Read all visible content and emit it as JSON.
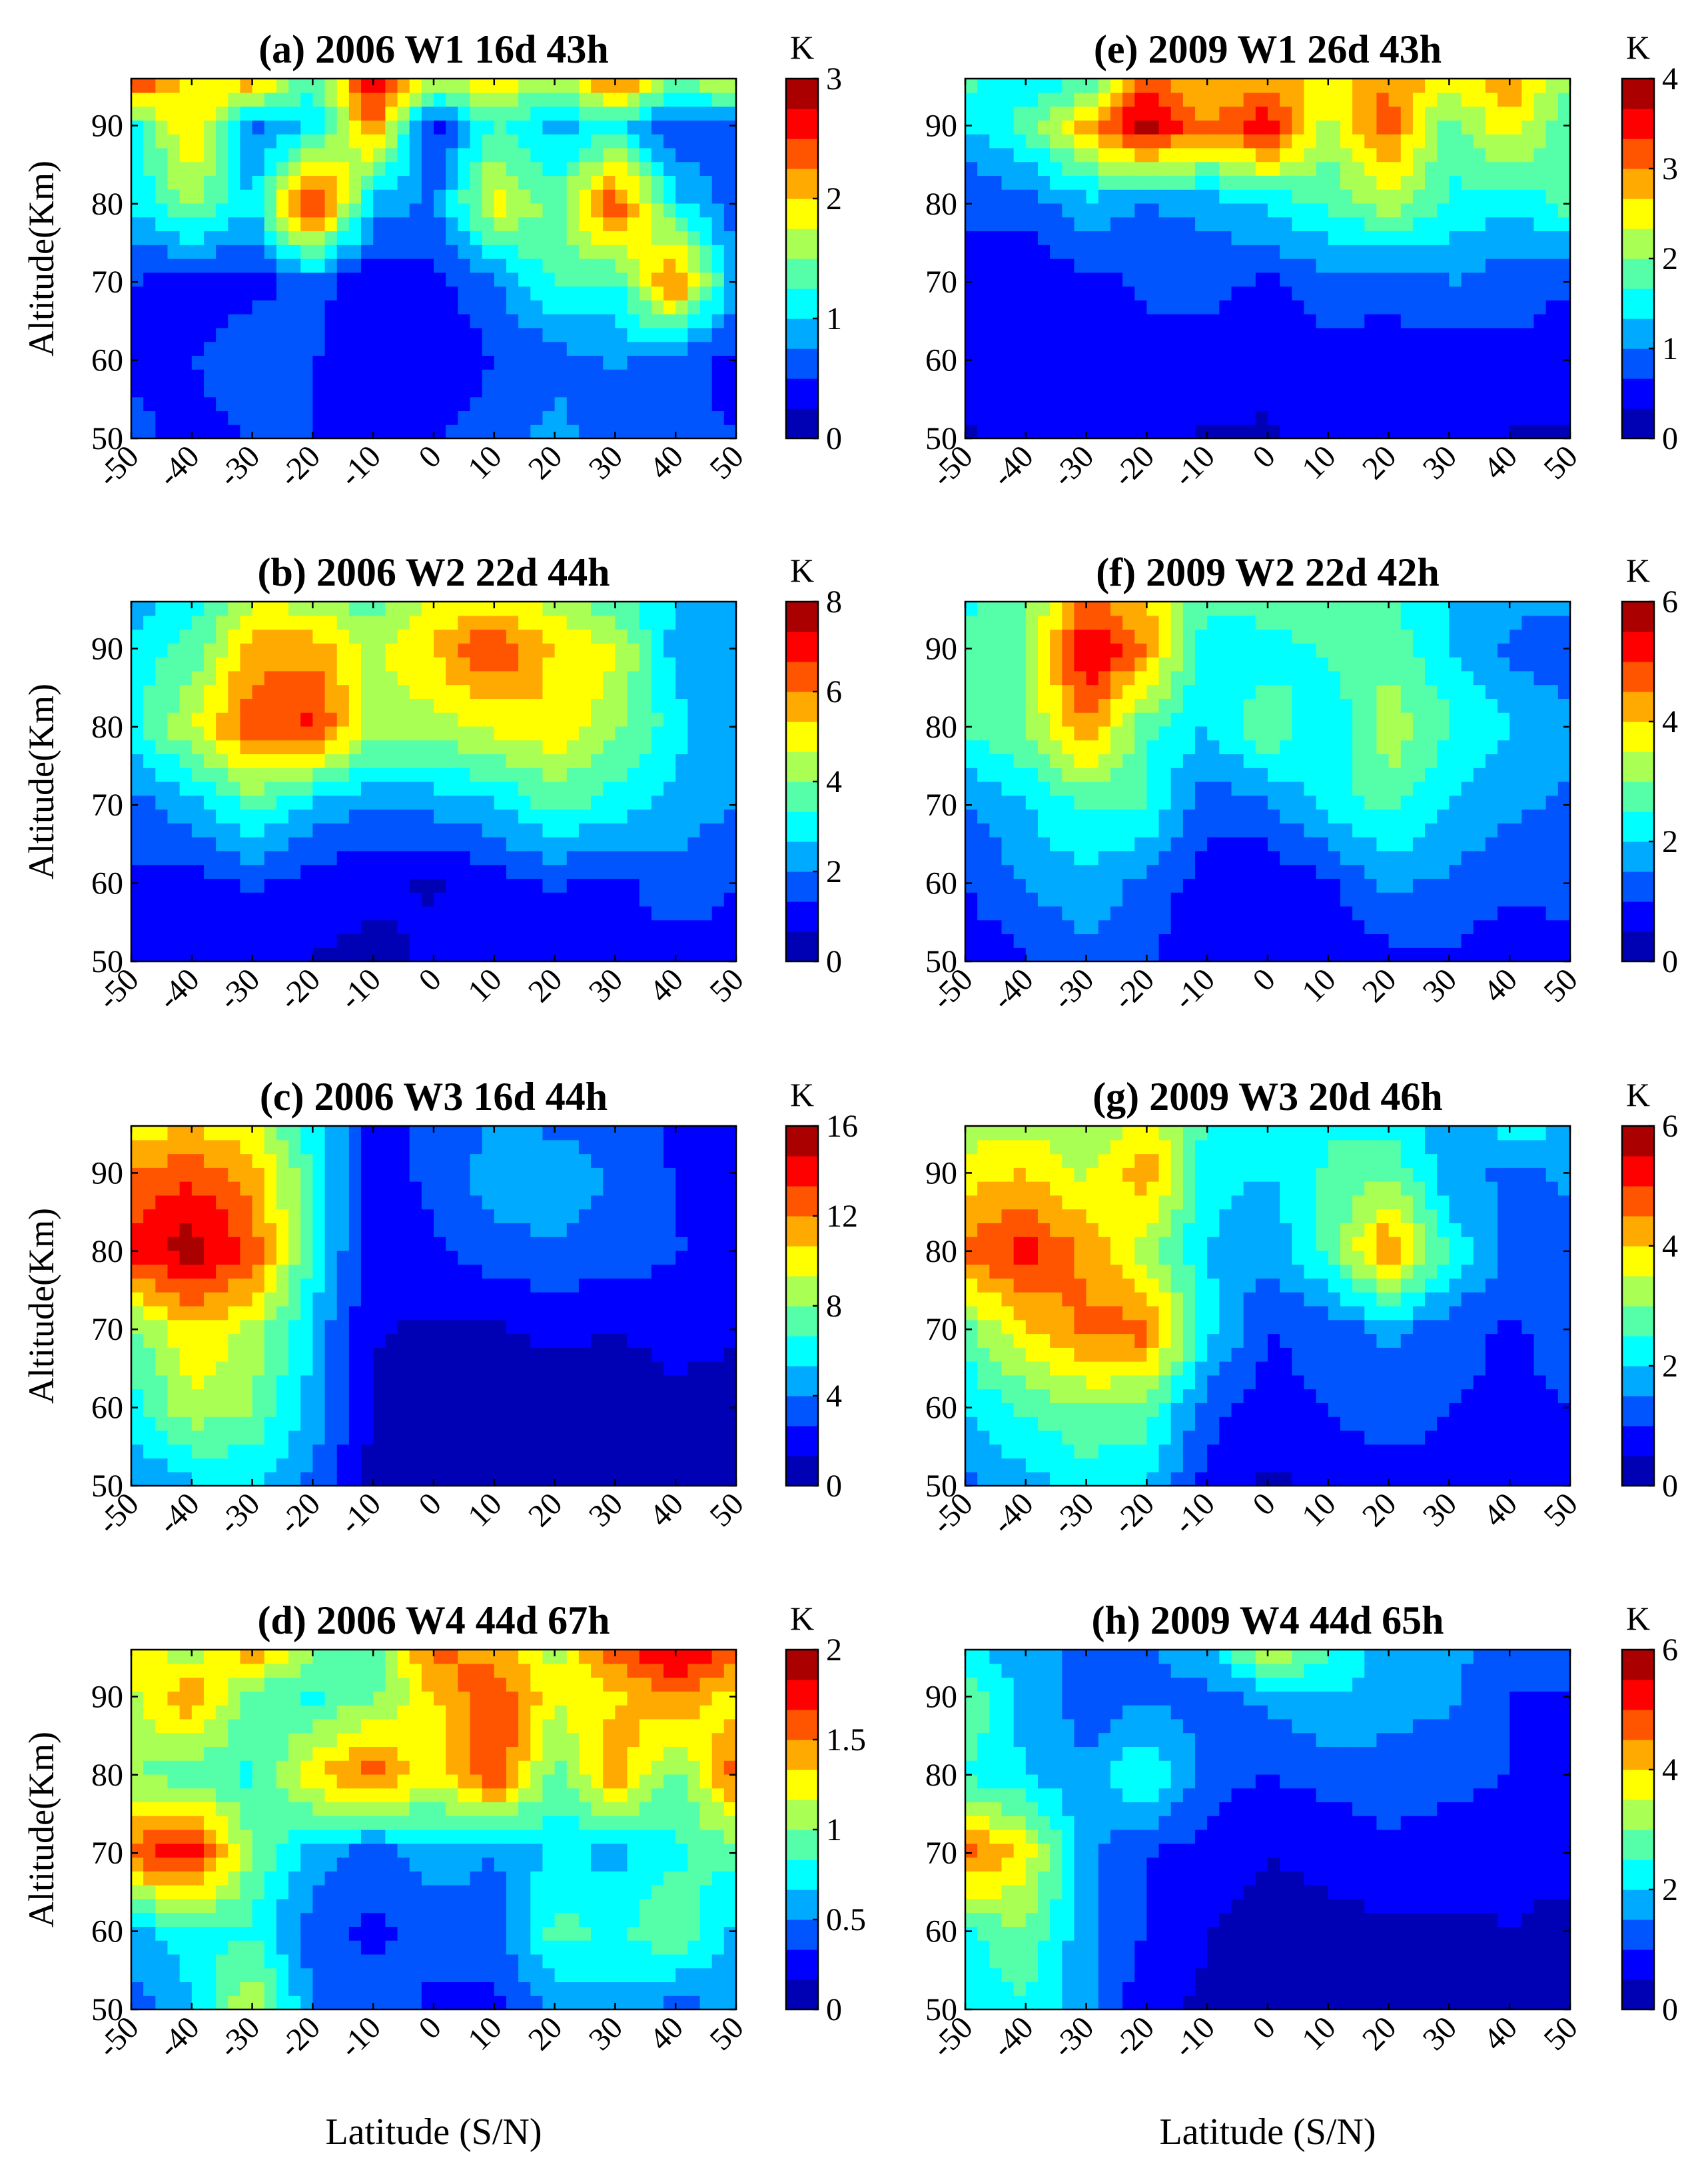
{
  "colormap": [
    "#00008f",
    "#0000ff",
    "#0080ff",
    "#00ffff",
    "#80ff80",
    "#ffff00",
    "#ff8000",
    "#ff0000",
    "#800000"
  ],
  "chart_data": [
    {
      "type": "heatmap",
      "panel": "a",
      "title": "(a) 2006 W1 16d 43h",
      "xlabel": "",
      "ylabel": "Altitude(Km)",
      "xlim": [
        -50,
        50
      ],
      "ylim": [
        50,
        96
      ],
      "xticks": [
        "-50",
        "-40",
        "-30",
        "-20",
        "-10",
        "0",
        "10",
        "20",
        "30",
        "40",
        "50"
      ],
      "yticks": [
        "50",
        "60",
        "70",
        "80",
        "90"
      ],
      "colorbar": {
        "unit": "K",
        "min": 0,
        "max": 3,
        "ticks": [
          "0",
          "1",
          "2",
          "3"
        ]
      },
      "lat": [
        -50,
        -40,
        -30,
        -20,
        -10,
        0,
        10,
        20,
        30,
        40,
        50
      ],
      "alt": [
        50,
        60,
        70,
        80,
        90,
        96
      ],
      "z": [
        [
          0.6,
          0.4,
          0.5,
          0.5,
          0.4,
          0.5,
          0.6,
          0.9,
          0.5,
          0.6,
          0.5
        ],
        [
          0.4,
          0.5,
          0.7,
          0.5,
          0.4,
          0.3,
          0.5,
          0.6,
          0.8,
          0.6,
          0.4
        ],
        [
          0.5,
          0.3,
          0.4,
          0.6,
          0.3,
          0.4,
          0.7,
          1.3,
          1.2,
          2.4,
          0.8
        ],
        [
          1.0,
          1.6,
          1.0,
          2.8,
          0.9,
          0.7,
          1.9,
          1.4,
          2.5,
          1.1,
          0.6
        ],
        [
          1.1,
          2.1,
          0.7,
          1.0,
          2.3,
          0.4,
          1.3,
          0.9,
          1.1,
          0.5,
          0.7
        ],
        [
          2.7,
          1.8,
          2.3,
          1.2,
          2.8,
          1.7,
          2.0,
          1.6,
          2.5,
          1.5,
          1.9
        ]
      ]
    },
    {
      "type": "heatmap",
      "panel": "b",
      "title": "(b) 2006 W2 22d 44h",
      "xlabel": "",
      "ylabel": "Altitude(Km)",
      "xlim": [
        -50,
        50
      ],
      "ylim": [
        50,
        96
      ],
      "xticks": [
        "-50",
        "-40",
        "-30",
        "-20",
        "-10",
        "0",
        "10",
        "20",
        "30",
        "40",
        "50"
      ],
      "yticks": [
        "50",
        "60",
        "70",
        "80",
        "90"
      ],
      "colorbar": {
        "unit": "K",
        "min": 0,
        "max": 8,
        "ticks": [
          "0",
          "2",
          "4",
          "6",
          "8"
        ]
      },
      "lat": [
        -50,
        -40,
        -30,
        -20,
        -10,
        0,
        10,
        20,
        30,
        40,
        50
      ],
      "alt": [
        50,
        60,
        70,
        80,
        90,
        96
      ],
      "z": [
        [
          1.0,
          0.8,
          1.0,
          0.6,
          0.5,
          0.8,
          1.0,
          1.0,
          0.9,
          1.0,
          1.0
        ],
        [
          1.2,
          1.0,
          1.4,
          1.0,
          0.8,
          0.6,
          1.0,
          1.4,
          1.1,
          1.8,
          1.3
        ],
        [
          1.6,
          2.4,
          3.6,
          2.4,
          2.0,
          2.2,
          2.6,
          3.6,
          3.0,
          2.4,
          2.0
        ],
        [
          3.2,
          4.6,
          6.5,
          6.8,
          4.4,
          4.4,
          4.8,
          5.2,
          4.2,
          3.0,
          2.0
        ],
        [
          2.8,
          3.6,
          5.6,
          5.8,
          4.5,
          5.4,
          6.8,
          5.2,
          4.8,
          2.4,
          2.0
        ],
        [
          2.4,
          2.9,
          4.6,
          4.4,
          3.6,
          4.8,
          5.0,
          4.4,
          3.6,
          2.6,
          2.2
        ]
      ]
    },
    {
      "type": "heatmap",
      "panel": "c",
      "title": "(c) 2006 W3 16d 44h",
      "xlabel": "",
      "ylabel": "Altitude(Km)",
      "xlim": [
        -50,
        50
      ],
      "ylim": [
        50,
        96
      ],
      "xticks": [
        "-50",
        "-40",
        "-30",
        "-20",
        "-10",
        "0",
        "10",
        "20",
        "30",
        "40",
        "50"
      ],
      "yticks": [
        "50",
        "60",
        "70",
        "80",
        "90"
      ],
      "colorbar": {
        "unit": "K",
        "min": 0,
        "max": 16,
        "ticks": [
          "0",
          "4",
          "8",
          "12",
          "16"
        ]
      },
      "lat": [
        -50,
        -40,
        -30,
        -20,
        -10,
        0,
        10,
        20,
        30,
        40,
        50
      ],
      "alt": [
        50,
        60,
        70,
        80,
        90,
        96
      ],
      "z": [
        [
          4.0,
          5.0,
          5.5,
          3.5,
          1.0,
          0.6,
          0.5,
          0.6,
          0.5,
          0.5,
          0.5
        ],
        [
          6.0,
          9.0,
          8.0,
          5.0,
          1.0,
          0.5,
          0.6,
          0.8,
          0.6,
          1.0,
          0.8
        ],
        [
          7.5,
          10.5,
          9.0,
          5.0,
          1.5,
          1.0,
          1.2,
          1.6,
          1.3,
          1.8,
          1.5
        ],
        [
          14.0,
          15.5,
          13.0,
          6.5,
          1.6,
          2.5,
          3.4,
          3.8,
          3.4,
          2.8,
          2.0
        ],
        [
          12.0,
          13.0,
          11.5,
          6.5,
          2.0,
          3.0,
          4.8,
          5.0,
          3.8,
          2.6,
          1.8
        ],
        [
          10.0,
          10.5,
          9.5,
          6.0,
          2.2,
          3.0,
          4.0,
          3.8,
          3.2,
          2.4,
          2.0
        ]
      ]
    },
    {
      "type": "heatmap",
      "panel": "d",
      "title": "(d) 2006 W4 44d 67h",
      "xlabel": "Latitude (S/N)",
      "ylabel": "Altitude(Km)",
      "xlim": [
        -50,
        50
      ],
      "ylim": [
        50,
        96
      ],
      "xticks": [
        "-50",
        "-40",
        "-30",
        "-20",
        "-10",
        "0",
        "10",
        "20",
        "30",
        "40",
        "50"
      ],
      "yticks": [
        "50",
        "60",
        "70",
        "80",
        "90"
      ],
      "colorbar": {
        "unit": "K",
        "min": 0,
        "max": 2,
        "ticks": [
          "0",
          "0.5",
          "1",
          "1.5",
          "2"
        ]
      },
      "lat": [
        -50,
        -40,
        -30,
        -20,
        -10,
        0,
        10,
        20,
        30,
        40,
        50
      ],
      "alt": [
        50,
        60,
        70,
        80,
        90,
        96
      ],
      "z": [
        [
          0.4,
          0.6,
          1.2,
          0.5,
          0.4,
          0.3,
          0.3,
          0.5,
          0.6,
          0.4,
          0.6
        ],
        [
          0.6,
          0.8,
          0.8,
          0.4,
          0.3,
          0.4,
          0.4,
          0.9,
          0.8,
          1.0,
          0.6
        ],
        [
          1.6,
          1.8,
          1.0,
          0.6,
          0.4,
          0.6,
          0.5,
          0.7,
          0.6,
          0.8,
          0.9
        ],
        [
          1.0,
          0.9,
          0.8,
          1.3,
          1.6,
          1.2,
          1.7,
          0.9,
          1.5,
          0.9,
          1.6
        ],
        [
          1.1,
          1.5,
          0.9,
          0.8,
          1.0,
          1.3,
          1.7,
          1.2,
          1.3,
          1.5,
          1.2
        ],
        [
          1.3,
          1.0,
          1.5,
          1.0,
          0.8,
          1.6,
          1.4,
          1.1,
          1.6,
          1.9,
          1.6
        ]
      ]
    },
    {
      "type": "heatmap",
      "panel": "e",
      "title": "(e) 2009 W1 26d 43h",
      "xlabel": "",
      "ylabel": "",
      "xlim": [
        -50,
        50
      ],
      "ylim": [
        50,
        96
      ],
      "xticks": [
        "-50",
        "-40",
        "-30",
        "-20",
        "-10",
        "0",
        "10",
        "20",
        "30",
        "40",
        "50"
      ],
      "yticks": [
        "50",
        "60",
        "70",
        "80",
        "90"
      ],
      "colorbar": {
        "unit": "K",
        "min": 0,
        "max": 4,
        "ticks": [
          "0",
          "1",
          "2",
          "3",
          "4"
        ]
      },
      "lat": [
        -50,
        -40,
        -30,
        -20,
        -10,
        0,
        10,
        20,
        30,
        40,
        50
      ],
      "alt": [
        50,
        60,
        70,
        80,
        90,
        96
      ],
      "z": [
        [
          0.3,
          0.5,
          0.4,
          0.4,
          0.3,
          0.3,
          0.4,
          0.4,
          0.4,
          0.3,
          0.3
        ],
        [
          0.4,
          0.6,
          0.4,
          0.6,
          0.5,
          0.4,
          0.5,
          0.6,
          0.5,
          0.6,
          0.5
        ],
        [
          0.6,
          0.4,
          0.6,
          0.7,
          0.8,
          0.6,
          0.9,
          0.7,
          1.0,
          0.8,
          0.7
        ],
        [
          0.7,
          0.8,
          1.2,
          1.0,
          1.1,
          1.4,
          1.7,
          2.2,
          1.6,
          1.4,
          1.8
        ],
        [
          1.3,
          1.8,
          2.8,
          3.9,
          3.0,
          3.6,
          2.2,
          3.2,
          1.8,
          2.6,
          1.6
        ],
        [
          1.8,
          1.4,
          1.6,
          3.2,
          2.6,
          2.9,
          2.4,
          3.0,
          2.4,
          3.0,
          2.0
        ]
      ]
    },
    {
      "type": "heatmap",
      "panel": "f",
      "title": "(f) 2009 W2 22d 42h",
      "xlabel": "",
      "ylabel": "",
      "xlim": [
        -50,
        50
      ],
      "ylim": [
        50,
        96
      ],
      "xticks": [
        "-50",
        "-40",
        "-30",
        "-20",
        "-10",
        "0",
        "10",
        "20",
        "30",
        "40",
        "50"
      ],
      "yticks": [
        "50",
        "60",
        "70",
        "80",
        "90"
      ],
      "colorbar": {
        "unit": "K",
        "min": 0,
        "max": 6,
        "ticks": [
          "0",
          "2",
          "4",
          "6"
        ]
      },
      "lat": [
        -50,
        -40,
        -30,
        -20,
        -10,
        0,
        10,
        20,
        30,
        40,
        50
      ],
      "alt": [
        50,
        60,
        70,
        80,
        90,
        96
      ],
      "z": [
        [
          0.7,
          0.9,
          1.4,
          1.1,
          0.5,
          0.6,
          0.5,
          0.8,
          0.9,
          0.7,
          0.8
        ],
        [
          1.0,
          1.5,
          1.9,
          1.3,
          0.8,
          0.6,
          0.9,
          1.6,
          1.4,
          1.1,
          1.2
        ],
        [
          1.4,
          2.0,
          2.6,
          2.5,
          1.1,
          1.4,
          2.2,
          2.7,
          1.9,
          1.6,
          1.4
        ],
        [
          2.6,
          3.0,
          4.5,
          2.6,
          2.0,
          3.0,
          2.0,
          3.4,
          2.6,
          2.0,
          1.6
        ],
        [
          2.8,
          3.0,
          5.6,
          4.5,
          2.0,
          2.2,
          2.6,
          2.8,
          2.0,
          1.4,
          1.2
        ],
        [
          2.4,
          2.8,
          4.6,
          4.0,
          2.6,
          2.8,
          3.0,
          2.6,
          2.0,
          1.6,
          1.6
        ]
      ]
    },
    {
      "type": "heatmap",
      "panel": "g",
      "title": "(g) 2009 W3 20d 46h",
      "xlabel": "",
      "ylabel": "",
      "xlim": [
        -50,
        50
      ],
      "ylim": [
        50,
        96
      ],
      "xticks": [
        "-50",
        "-40",
        "-30",
        "-20",
        "-10",
        "0",
        "10",
        "20",
        "30",
        "40",
        "50"
      ],
      "yticks": [
        "50",
        "60",
        "70",
        "80",
        "90"
      ],
      "colorbar": {
        "unit": "K",
        "min": 0,
        "max": 6,
        "ticks": [
          "0",
          "2",
          "4",
          "6"
        ]
      },
      "lat": [
        -50,
        -40,
        -30,
        -20,
        -10,
        0,
        10,
        20,
        30,
        40,
        50
      ],
      "alt": [
        50,
        60,
        70,
        80,
        90,
        96
      ],
      "z": [
        [
          1.4,
          1.8,
          2.2,
          2.0,
          0.8,
          0.4,
          0.6,
          0.7,
          0.8,
          0.7,
          0.6
        ],
        [
          2.0,
          2.6,
          3.0,
          2.8,
          1.2,
          0.8,
          1.0,
          1.4,
          1.0,
          0.9,
          1.0
        ],
        [
          2.8,
          4.0,
          4.6,
          4.8,
          2.2,
          1.0,
          1.2,
          1.6,
          1.2,
          0.9,
          1.2
        ],
        [
          4.6,
          5.2,
          4.4,
          3.2,
          2.0,
          1.6,
          2.6,
          4.6,
          2.4,
          1.4,
          1.2
        ],
        [
          3.8,
          4.0,
          3.4,
          4.4,
          2.2,
          2.0,
          2.6,
          3.0,
          1.6,
          1.4,
          1.6
        ],
        [
          3.2,
          3.4,
          3.0,
          3.8,
          2.4,
          2.2,
          2.4,
          2.4,
          1.8,
          2.2,
          2.0
        ]
      ]
    },
    {
      "type": "heatmap",
      "panel": "h",
      "title": "(h) 2009 W4 44d 65h",
      "xlabel": "Latitude (S/N)",
      "ylabel": "",
      "xlim": [
        -50,
        50
      ],
      "ylim": [
        50,
        96
      ],
      "xticks": [
        "-50",
        "-40",
        "-30",
        "-20",
        "-10",
        "0",
        "10",
        "20",
        "30",
        "40",
        "50"
      ],
      "yticks": [
        "50",
        "60",
        "70",
        "80",
        "90"
      ],
      "colorbar": {
        "unit": "K",
        "min": 0,
        "max": 6,
        "ticks": [
          "0",
          "2",
          "4",
          "6"
        ]
      },
      "lat": [
        -50,
        -40,
        -30,
        -20,
        -10,
        0,
        10,
        20,
        30,
        40,
        50
      ],
      "alt": [
        50,
        60,
        70,
        80,
        90,
        96
      ],
      "z": [
        [
          2.0,
          2.4,
          1.6,
          0.6,
          0.4,
          0.4,
          0.4,
          0.5,
          0.4,
          0.4,
          0.4
        ],
        [
          2.4,
          3.0,
          1.6,
          1.0,
          0.5,
          0.3,
          0.4,
          0.4,
          0.4,
          0.5,
          0.4
        ],
        [
          4.8,
          3.8,
          1.6,
          1.0,
          0.8,
          0.5,
          0.6,
          0.8,
          0.7,
          0.6,
          0.6
        ],
        [
          2.4,
          2.0,
          1.6,
          2.6,
          1.2,
          1.0,
          1.2,
          1.4,
          1.2,
          1.0,
          0.8
        ],
        [
          3.0,
          1.8,
          1.2,
          1.4,
          1.4,
          1.6,
          2.0,
          1.6,
          1.6,
          1.0,
          0.8
        ],
        [
          2.2,
          1.6,
          1.4,
          1.4,
          1.8,
          3.6,
          2.6,
          1.8,
          1.6,
          1.4,
          1.6
        ]
      ]
    }
  ]
}
